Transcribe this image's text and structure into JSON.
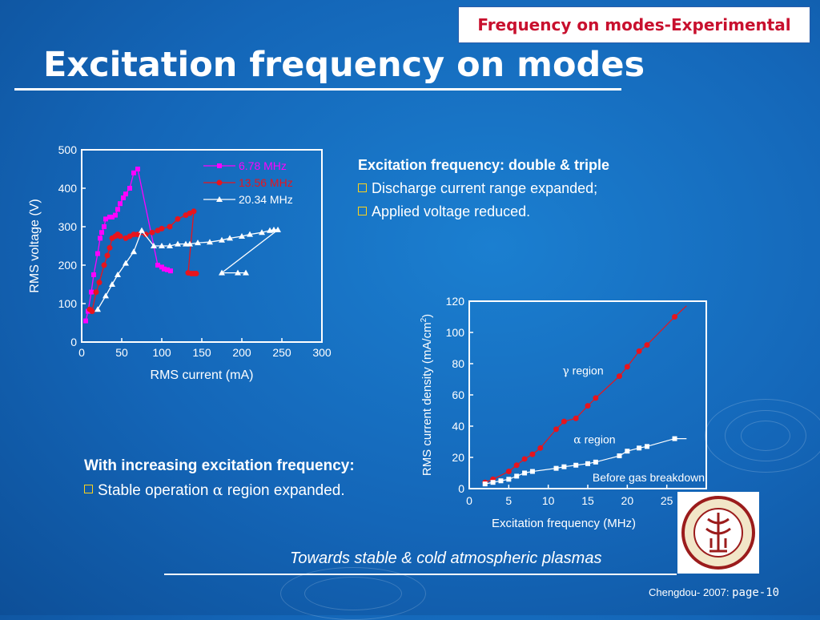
{
  "badge": "Frequency on modes-Experimental",
  "title": "Excitation frequency on modes",
  "bullets_right": {
    "head": "Excitation frequency: double & triple",
    "items": [
      "Discharge current range expanded;",
      "Applied voltage reduced."
    ]
  },
  "bullets_left": {
    "head": "With increasing excitation frequency:",
    "item_prefix": "Stable operation ",
    "item_symbol": "α",
    "item_suffix": " region expanded."
  },
  "footer": "Towards stable & cold atmospheric plasmas",
  "credit": {
    "text": "Chengdou- 2007: ",
    "page": "page-10"
  },
  "colors": {
    "series_magenta": "#ff00ff",
    "series_red": "#e8141c",
    "series_white": "#ffffff",
    "badge_text": "#c8102e"
  },
  "chart_data": [
    {
      "type": "line",
      "xlabel": "RMS current (mA)",
      "ylabel": "RMS voltage (V)",
      "xlim": [
        0,
        300
      ],
      "ylim": [
        0,
        500
      ],
      "xticks": [
        0,
        50,
        100,
        150,
        200,
        250,
        300
      ],
      "yticks": [
        0,
        100,
        200,
        300,
        400,
        500
      ],
      "legend_position": "top-right",
      "series": [
        {
          "name": "6.78 MHz",
          "color": "#ff00ff",
          "marker": "square",
          "x": [
            5,
            8,
            12,
            15,
            20,
            23,
            25,
            28,
            30,
            35,
            38,
            42,
            45,
            48,
            52,
            55,
            60,
            65,
            70,
            95,
            100,
            103,
            107,
            111
          ],
          "y": [
            55,
            80,
            130,
            175,
            230,
            270,
            285,
            300,
            320,
            325,
            325,
            330,
            345,
            360,
            375,
            385,
            400,
            440,
            450,
            200,
            195,
            190,
            188,
            185
          ]
        },
        {
          "name": "13.56 MHz",
          "color": "#e8141c",
          "marker": "circle",
          "x": [
            10,
            13,
            18,
            22,
            28,
            32,
            35,
            38,
            42,
            45,
            48,
            55,
            60,
            65,
            70,
            80,
            88,
            95,
            100,
            110,
            120,
            130,
            135,
            140,
            133,
            137,
            140,
            143
          ],
          "y": [
            85,
            80,
            130,
            155,
            200,
            225,
            245,
            270,
            275,
            280,
            275,
            270,
            275,
            280,
            280,
            280,
            285,
            290,
            295,
            300,
            320,
            330,
            335,
            340,
            180,
            178,
            178,
            178
          ]
        },
        {
          "name": "20.34 MHz",
          "color": "#ffffff",
          "marker": "triangle",
          "x": [
            20,
            30,
            38,
            45,
            55,
            65,
            75,
            90,
            100,
            110,
            120,
            130,
            135,
            145,
            160,
            175,
            185,
            200,
            210,
            225,
            235,
            240,
            245,
            175,
            195,
            205
          ],
          "y": [
            85,
            120,
            150,
            175,
            205,
            235,
            290,
            250,
            250,
            250,
            255,
            255,
            255,
            258,
            260,
            265,
            270,
            275,
            280,
            285,
            290,
            292,
            292,
            180,
            180,
            180
          ]
        }
      ]
    },
    {
      "type": "scatter",
      "xlabel": "Excitation frequency (MHz)",
      "ylabel": "RMS current density (mA/cm",
      "ylabel_sup": "2",
      "ylabel_close": ")",
      "xlim": [
        0,
        30
      ],
      "ylim": [
        0,
        120
      ],
      "xticks": [
        0,
        5,
        10,
        15,
        20,
        25
      ],
      "yticks": [
        0,
        20,
        40,
        60,
        80,
        100,
        120
      ],
      "annotations": {
        "gamma_symbol": "γ",
        "gamma_text": " region",
        "alpha_symbol": "α",
        "alpha_text": " region",
        "breakdown_text": "Before gas breakdown"
      },
      "series": [
        {
          "name": "γ region",
          "color": "#e8141c",
          "marker": "circle",
          "x": [
            2,
            3,
            5,
            6,
            7,
            8,
            9,
            11,
            12,
            13.5,
            15,
            16,
            19,
            20,
            21.5,
            22.5,
            26
          ],
          "y": [
            4,
            6,
            11,
            15,
            19,
            22,
            26,
            38,
            43,
            45,
            53,
            58,
            72,
            78,
            88,
            92,
            110
          ]
        },
        {
          "name": "α region",
          "color": "#ffffff",
          "marker": "square",
          "x": [
            2,
            3,
            4,
            5,
            6,
            7,
            8,
            11,
            12,
            13.5,
            15,
            16,
            19,
            20,
            21.5,
            22.5,
            26
          ],
          "y": [
            3,
            4,
            5,
            6,
            8,
            10,
            11,
            13,
            14,
            15,
            16,
            17,
            21,
            24,
            26,
            27,
            32
          ]
        }
      ]
    }
  ]
}
